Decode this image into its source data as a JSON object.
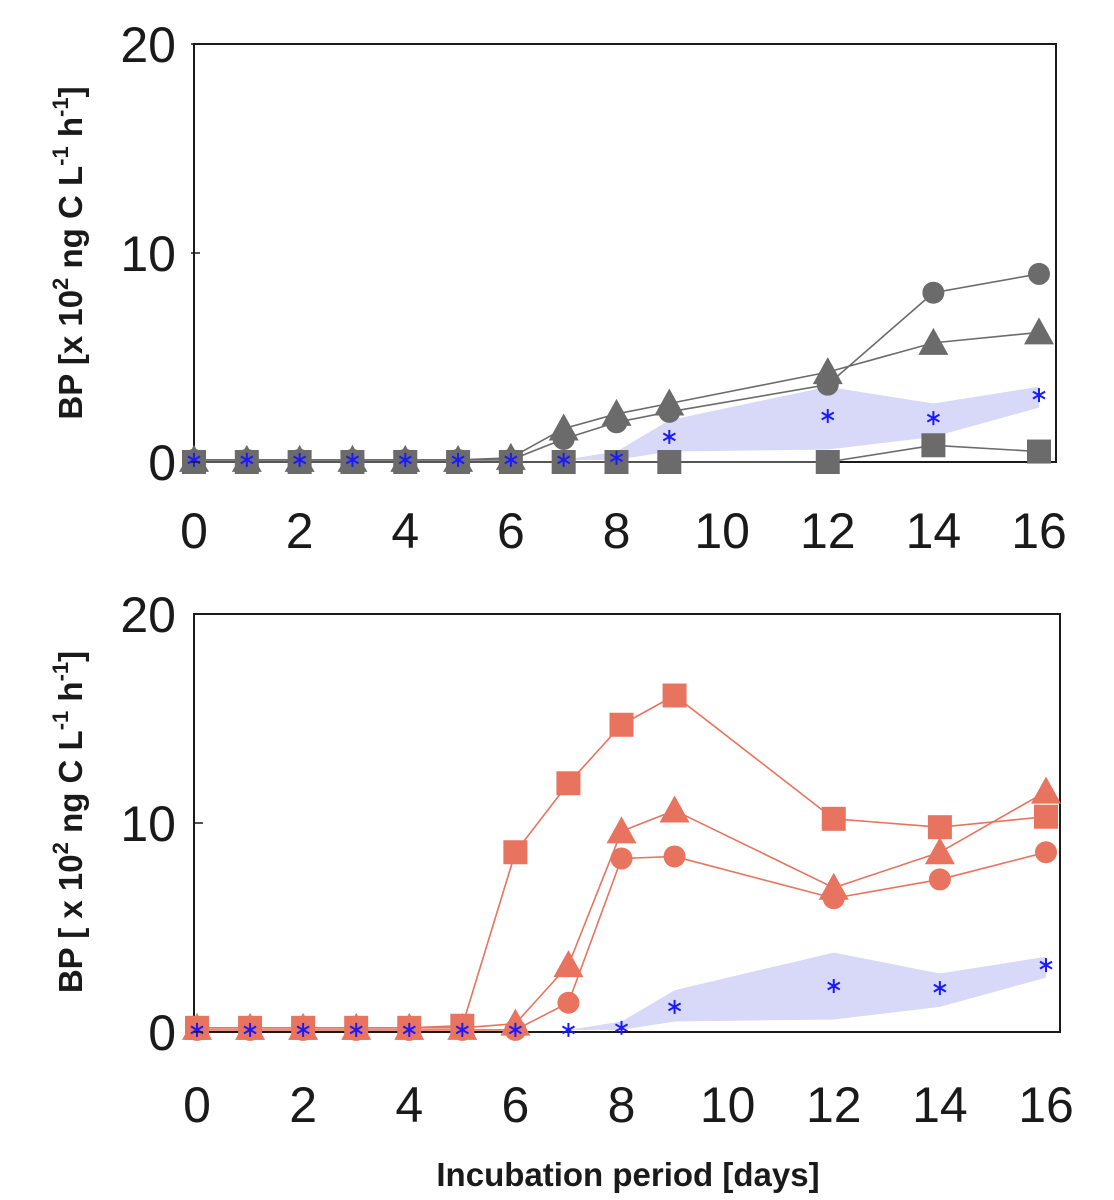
{
  "chart_data": [
    {
      "type": "line",
      "panel": "top",
      "ylabel": {
        "main": "BP [x 10",
        "exp1": "2",
        "mid": " ng C L",
        "exp2": "-1",
        "mid2": " h",
        "exp3": "-1",
        "end": "]"
      },
      "xlabel": "",
      "xlim": [
        0,
        16
      ],
      "ylim": [
        0,
        20
      ],
      "xticks": [
        0,
        2,
        4,
        6,
        8,
        10,
        12,
        14,
        16
      ],
      "yticks": [
        0,
        10,
        20
      ],
      "colors": {
        "series": "#6b6b6b",
        "marker": "#6b6b6b",
        "band": "#d8d8f8",
        "control": "#1a1aff"
      },
      "series": [
        {
          "marker": "circle",
          "x": [
            0,
            1,
            2,
            3,
            4,
            5,
            6,
            7,
            8,
            9,
            12,
            14,
            16
          ],
          "y": [
            0.1,
            0.1,
            0.1,
            0.1,
            0.1,
            0.1,
            0.1,
            1.1,
            1.9,
            2.4,
            3.7,
            8.1,
            9.0
          ]
        },
        {
          "marker": "triangle",
          "x": [
            0,
            1,
            2,
            3,
            4,
            5,
            6,
            7,
            8,
            9,
            12,
            14,
            16
          ],
          "y": [
            0.1,
            0.1,
            0.1,
            0.1,
            0.1,
            0.1,
            0.2,
            1.6,
            2.3,
            2.8,
            4.3,
            5.7,
            6.2
          ]
        },
        {
          "marker": "square",
          "x": [
            0,
            1,
            2,
            3,
            4,
            5,
            6,
            7,
            8,
            9,
            12,
            14,
            16
          ],
          "y": [
            0.0,
            0.0,
            0.0,
            0.0,
            0.0,
            0.0,
            0.0,
            0.0,
            0.0,
            0.0,
            0.0,
            0.8,
            0.5
          ]
        }
      ],
      "control": {
        "marker": "asterisk",
        "x": [
          0,
          1,
          2,
          3,
          4,
          5,
          6,
          7,
          8,
          9,
          12,
          14,
          16
        ],
        "y": [
          0.1,
          0.1,
          0.1,
          0.1,
          0.1,
          0.1,
          0.1,
          0.1,
          0.2,
          1.2,
          2.2,
          2.1,
          3.2
        ],
        "band_upper": [
          0.1,
          0.1,
          0.1,
          0.1,
          0.1,
          0.1,
          0.1,
          0.1,
          0.5,
          2.0,
          3.6,
          2.8,
          3.6
        ],
        "band_lower": [
          0.1,
          0.1,
          0.1,
          0.1,
          0.1,
          0.1,
          0.1,
          0.1,
          0.1,
          0.5,
          0.6,
          1.2,
          2.6
        ]
      }
    },
    {
      "type": "line",
      "panel": "bottom",
      "ylabel": {
        "main": "BP [ x 10",
        "exp1": "2",
        "mid": " ng C L",
        "exp2": "-1",
        "mid2": " h",
        "exp3": "-1",
        "end": "]"
      },
      "xlabel": "Incubation period [days]",
      "xlim": [
        0,
        16
      ],
      "ylim": [
        0,
        20
      ],
      "xticks": [
        0,
        2,
        4,
        6,
        8,
        10,
        12,
        14,
        16
      ],
      "yticks": [
        0,
        10,
        20
      ],
      "colors": {
        "series": "#e8735e",
        "marker": "#e8735e",
        "band": "#d8d8f8",
        "control": "#1a1aff"
      },
      "series": [
        {
          "marker": "square",
          "x": [
            0,
            1,
            2,
            3,
            4,
            5,
            6,
            7,
            8,
            9,
            12,
            14,
            16
          ],
          "y": [
            0.2,
            0.2,
            0.2,
            0.2,
            0.2,
            0.3,
            8.6,
            11.9,
            14.7,
            16.1,
            10.2,
            9.8,
            10.3
          ]
        },
        {
          "marker": "triangle",
          "x": [
            0,
            1,
            2,
            3,
            4,
            5,
            6,
            7,
            8,
            9,
            12,
            14,
            16
          ],
          "y": [
            0.2,
            0.2,
            0.2,
            0.2,
            0.2,
            0.2,
            0.4,
            3.2,
            9.6,
            10.6,
            6.9,
            8.6,
            11.5
          ]
        },
        {
          "marker": "circle",
          "x": [
            0,
            1,
            2,
            3,
            4,
            5,
            6,
            7,
            8,
            9,
            12,
            14,
            16
          ],
          "y": [
            0.1,
            0.1,
            0.1,
            0.1,
            0.1,
            0.1,
            0.1,
            1.4,
            8.3,
            8.4,
            6.4,
            7.3,
            8.6
          ]
        }
      ],
      "control": {
        "marker": "asterisk",
        "x": [
          0,
          1,
          2,
          3,
          4,
          5,
          6,
          7,
          8,
          9,
          12,
          14,
          16
        ],
        "y": [
          0.1,
          0.1,
          0.1,
          0.1,
          0.1,
          0.1,
          0.1,
          0.1,
          0.2,
          1.2,
          2.2,
          2.1,
          3.2
        ],
        "band_upper": [
          0.1,
          0.1,
          0.1,
          0.1,
          0.1,
          0.1,
          0.1,
          0.1,
          0.5,
          2.0,
          3.8,
          2.8,
          3.6
        ],
        "band_lower": [
          0.1,
          0.1,
          0.1,
          0.1,
          0.1,
          0.1,
          0.1,
          0.1,
          0.1,
          0.5,
          0.6,
          1.2,
          2.6
        ]
      }
    }
  ]
}
